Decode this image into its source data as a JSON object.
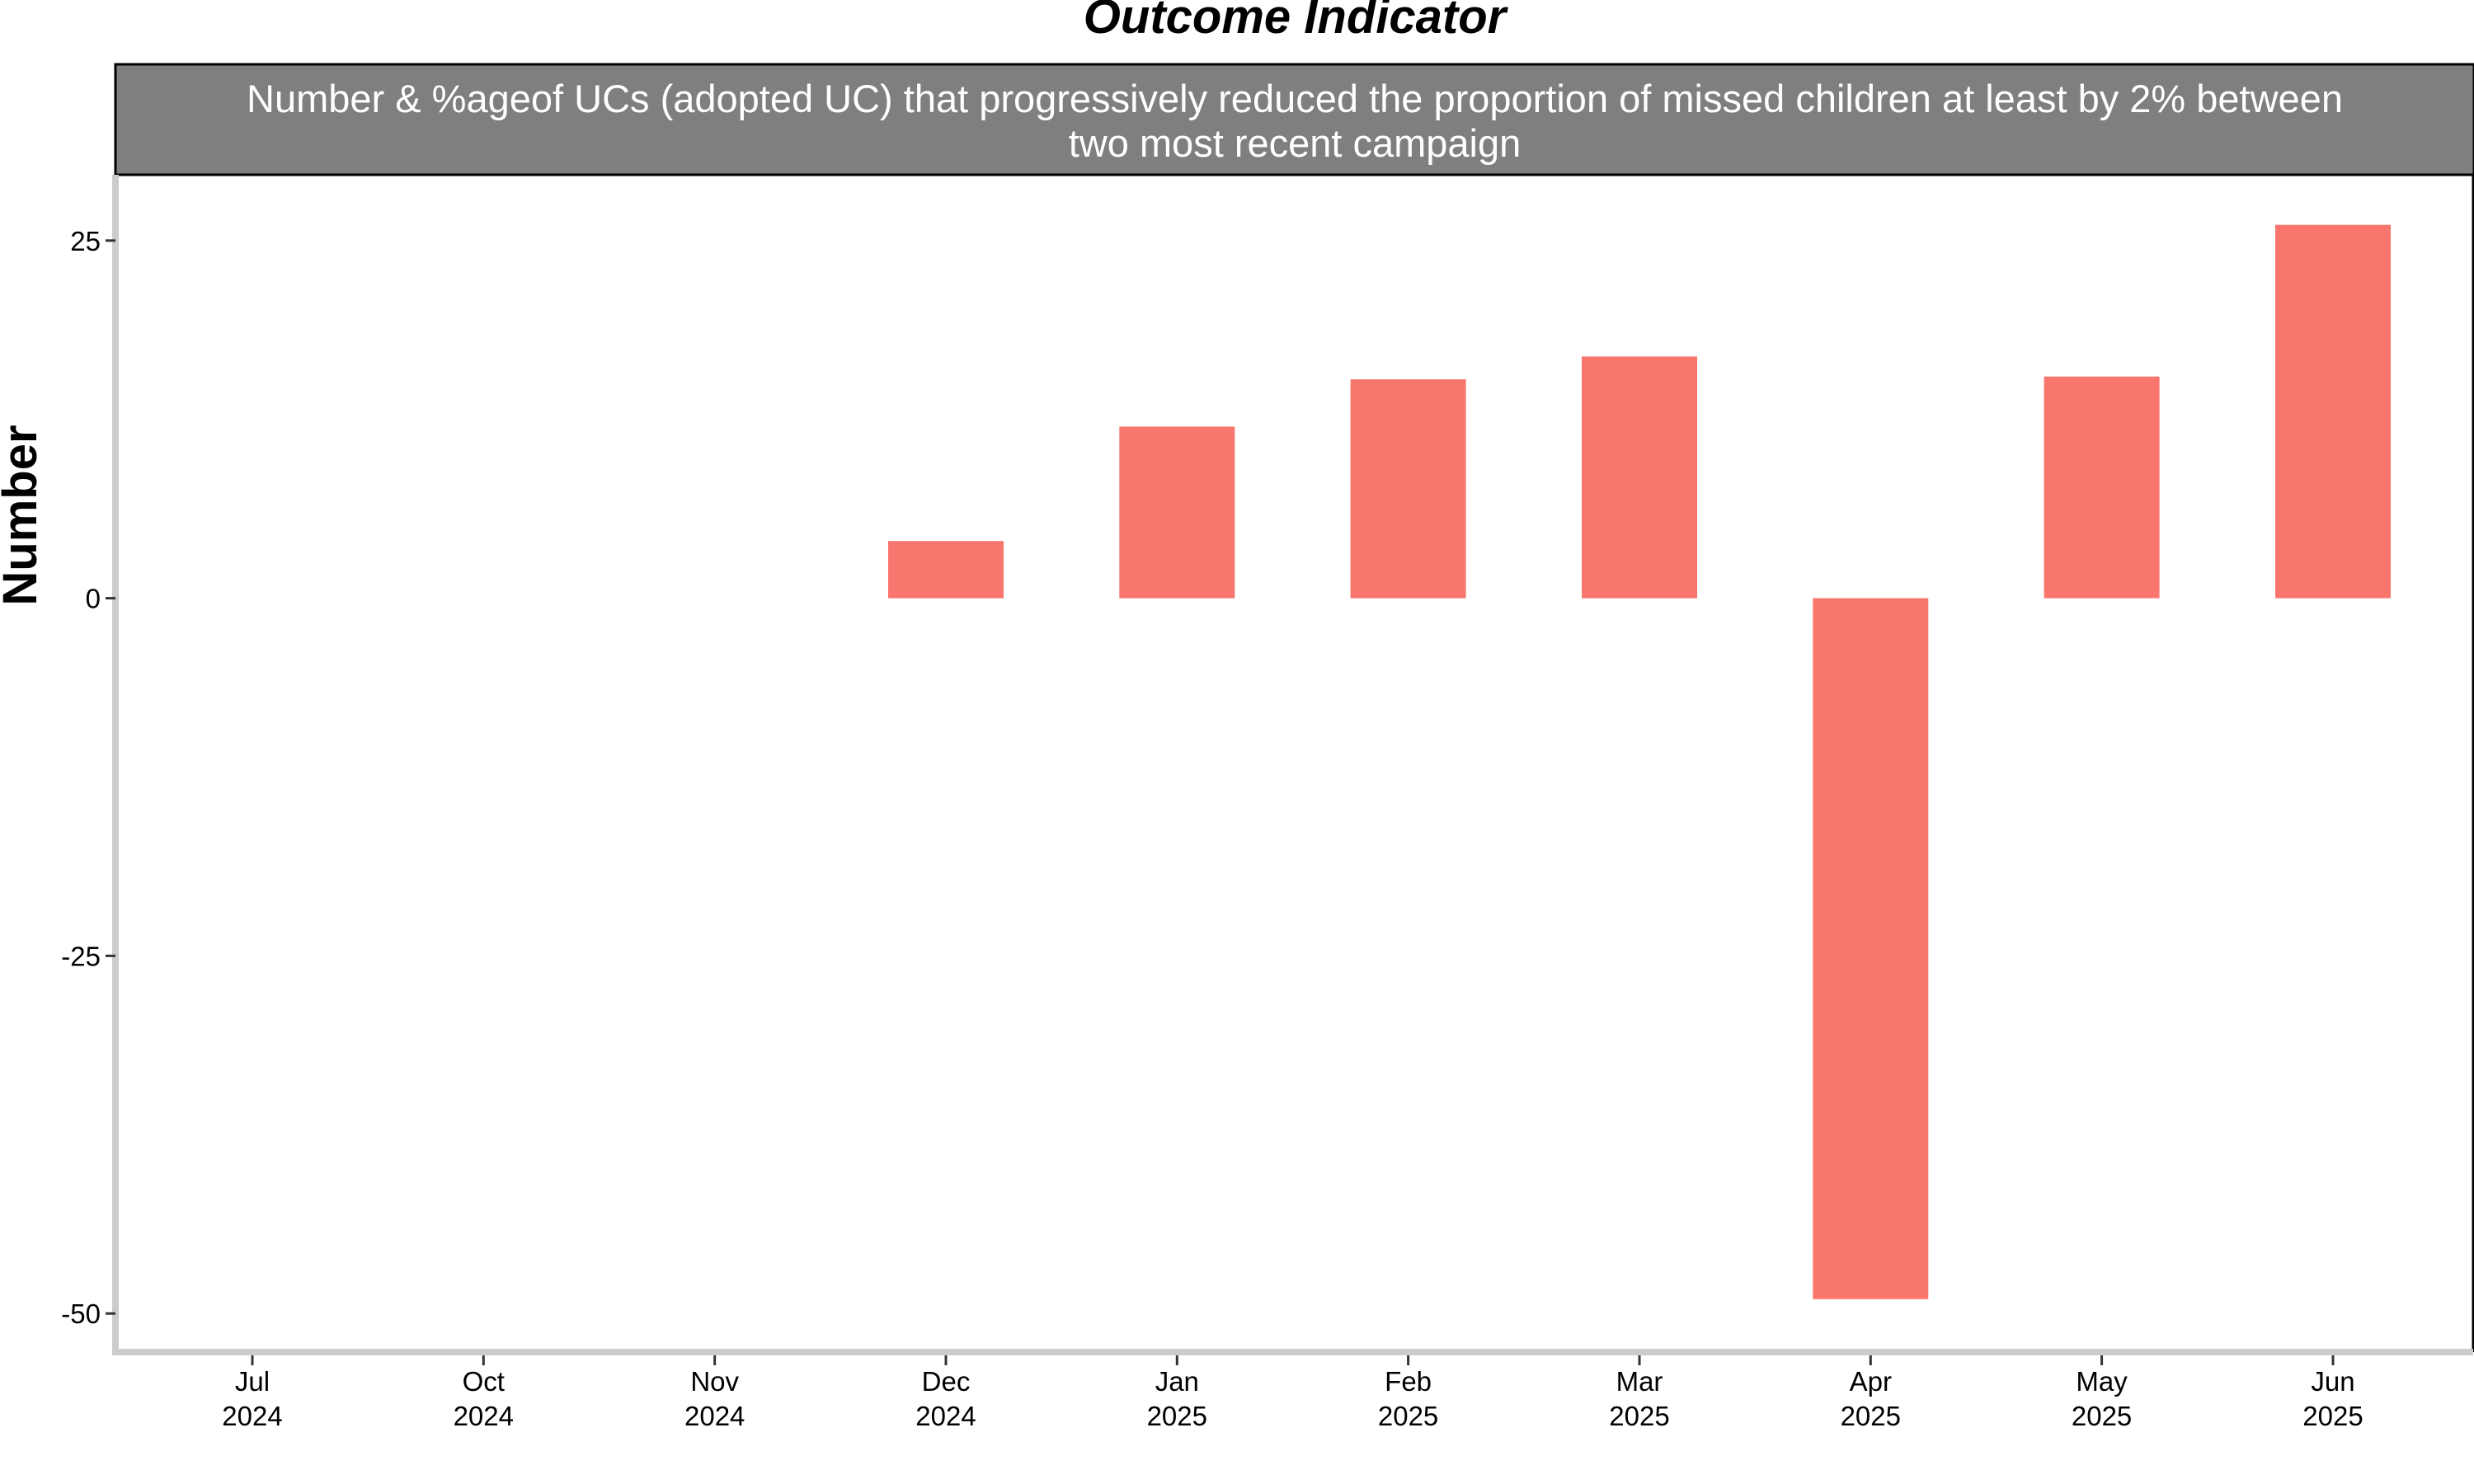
{
  "chart_data": {
    "type": "bar",
    "title": "Outcome Indicator",
    "subtitle_lines": [
      "Number & %ageof UCs (adopted UC) that progressively reduced the proportion of missed children at least by 2% between",
      "two most recent campaign"
    ],
    "xlabel": "",
    "ylabel": "Number",
    "categories": [
      [
        "Jul",
        "2024"
      ],
      [
        "Oct",
        "2024"
      ],
      [
        "Nov",
        "2024"
      ],
      [
        "Dec",
        "2024"
      ],
      [
        "Jan",
        "2025"
      ],
      [
        "Feb",
        "2025"
      ],
      [
        "Mar",
        "2025"
      ],
      [
        "Apr",
        "2025"
      ],
      [
        "May",
        "2025"
      ],
      [
        "Jun",
        "2025"
      ]
    ],
    "values": [
      null,
      null,
      null,
      4,
      12,
      15.3,
      16.9,
      -49,
      15.5,
      26.1
    ],
    "y_ticks": [
      25,
      0,
      -25,
      -50
    ],
    "y_tick_labels": [
      "25",
      "0",
      "-25",
      "-50"
    ],
    "ylim": [
      -52.7,
      29.6
    ],
    "grid": false,
    "legend": "none",
    "bar_color": "#F8766D",
    "strip_color": "#7F7F7F"
  }
}
